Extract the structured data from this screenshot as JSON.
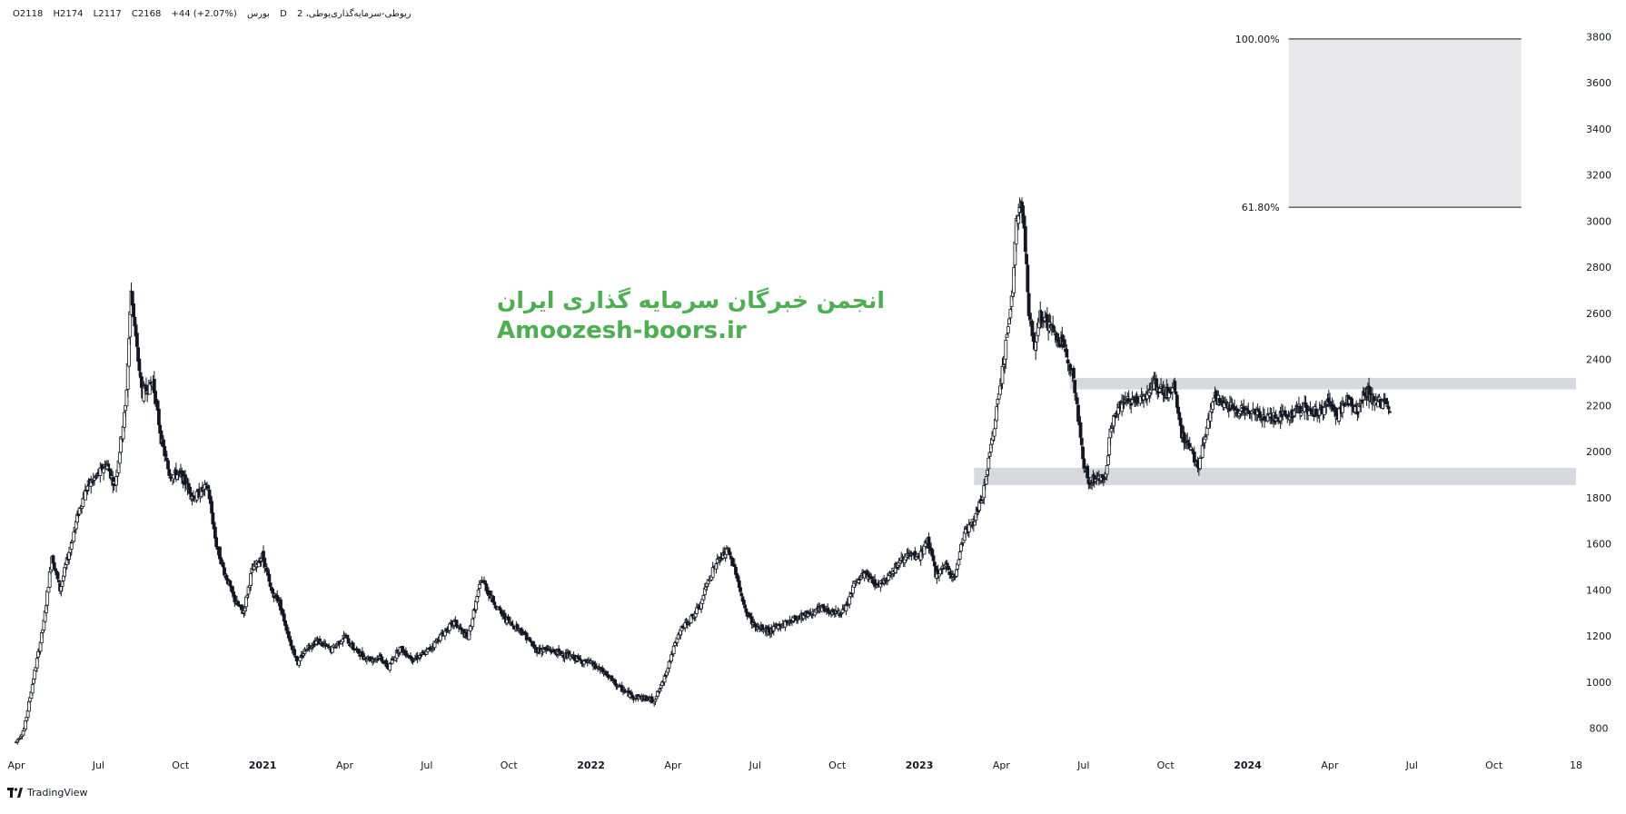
{
  "legend": {
    "symbol": "ریوطی-سرمایه‌گذاری‌یوطی، 2",
    "interval": "D",
    "exchange": "بورس",
    "open": "O2118",
    "high": "H2174",
    "low": "L2117",
    "close": "C2168",
    "change": "+44 (+2.07%)"
  },
  "watermark": {
    "persian": "انجمن خبرگان سرمایه گذاری ایران",
    "english": "Amoozesh-boors.ir",
    "color": "#4caf50"
  },
  "branding": {
    "label": "TradingView"
  },
  "chart_data": {
    "type": "candlestick",
    "title": "",
    "xlabel": "",
    "ylabel": "",
    "ylim": [
      720,
      3880
    ],
    "y_ticks": [
      800,
      1000,
      1200,
      1400,
      1600,
      1800,
      2000,
      2200,
      2400,
      2600,
      2800,
      3000,
      3200,
      3400,
      3600,
      3800
    ],
    "x_ticks": [
      {
        "t": 0.0,
        "label": "Apr",
        "bold": false
      },
      {
        "t": 3.0,
        "label": "Jul",
        "bold": false
      },
      {
        "t": 6.0,
        "label": "Oct",
        "bold": false
      },
      {
        "t": 9.0,
        "label": "2021",
        "bold": true
      },
      {
        "t": 12.0,
        "label": "Apr",
        "bold": false
      },
      {
        "t": 15.0,
        "label": "Jul",
        "bold": false
      },
      {
        "t": 18.0,
        "label": "Oct",
        "bold": false
      },
      {
        "t": 21.0,
        "label": "2022",
        "bold": true
      },
      {
        "t": 24.0,
        "label": "Apr",
        "bold": false
      },
      {
        "t": 27.0,
        "label": "Jul",
        "bold": false
      },
      {
        "t": 30.0,
        "label": "Oct",
        "bold": false
      },
      {
        "t": 33.0,
        "label": "2023",
        "bold": true
      },
      {
        "t": 36.0,
        "label": "Apr",
        "bold": false
      },
      {
        "t": 39.0,
        "label": "Jul",
        "bold": false
      },
      {
        "t": 42.0,
        "label": "Oct",
        "bold": false
      },
      {
        "t": 45.0,
        "label": "2024",
        "bold": true
      },
      {
        "t": 48.0,
        "label": "Apr",
        "bold": false
      },
      {
        "t": 51.0,
        "label": "Jul",
        "bold": false
      },
      {
        "t": 54.0,
        "label": "Oct",
        "bold": false
      },
      {
        "t": 57.0,
        "label": "18",
        "bold": false
      }
    ],
    "price_path": [
      [
        0.0,
        740
      ],
      [
        0.3,
        800
      ],
      [
        0.6,
        1000
      ],
      [
        1.0,
        1250
      ],
      [
        1.3,
        1550
      ],
      [
        1.6,
        1400
      ],
      [
        2.0,
        1600
      ],
      [
        2.3,
        1750
      ],
      [
        2.6,
        1850
      ],
      [
        3.0,
        1900
      ],
      [
        3.3,
        1950
      ],
      [
        3.6,
        1850
      ],
      [
        4.0,
        2200
      ],
      [
        4.2,
        2700
      ],
      [
        4.4,
        2450
      ],
      [
        4.6,
        2250
      ],
      [
        5.0,
        2300
      ],
      [
        5.3,
        2050
      ],
      [
        5.6,
        1900
      ],
      [
        6.0,
        1900
      ],
      [
        6.5,
        1800
      ],
      [
        7.0,
        1850
      ],
      [
        7.3,
        1600
      ],
      [
        7.6,
        1480
      ],
      [
        8.0,
        1350
      ],
      [
        8.3,
        1300
      ],
      [
        8.6,
        1480
      ],
      [
        9.0,
        1550
      ],
      [
        9.3,
        1400
      ],
      [
        9.6,
        1350
      ],
      [
        10.0,
        1180
      ],
      [
        10.3,
        1080
      ],
      [
        10.6,
        1150
      ],
      [
        11.0,
        1180
      ],
      [
        11.5,
        1140
      ],
      [
        12.0,
        1200
      ],
      [
        12.3,
        1150
      ],
      [
        12.7,
        1110
      ],
      [
        13.0,
        1100
      ],
      [
        13.3,
        1110
      ],
      [
        13.6,
        1060
      ],
      [
        14.0,
        1150
      ],
      [
        14.5,
        1100
      ],
      [
        15.0,
        1130
      ],
      [
        15.5,
        1200
      ],
      [
        16.0,
        1260
      ],
      [
        16.5,
        1190
      ],
      [
        17.0,
        1450
      ],
      [
        17.3,
        1380
      ],
      [
        17.7,
        1300
      ],
      [
        18.0,
        1260
      ],
      [
        18.5,
        1220
      ],
      [
        19.0,
        1140
      ],
      [
        19.5,
        1140
      ],
      [
        20.0,
        1120
      ],
      [
        20.5,
        1100
      ],
      [
        21.0,
        1080
      ],
      [
        21.5,
        1040
      ],
      [
        22.0,
        980
      ],
      [
        22.5,
        940
      ],
      [
        23.0,
        930
      ],
      [
        23.3,
        920
      ],
      [
        23.6,
        990
      ],
      [
        24.0,
        1140
      ],
      [
        24.3,
        1230
      ],
      [
        24.6,
        1270
      ],
      [
        25.0,
        1330
      ],
      [
        25.3,
        1450
      ],
      [
        25.6,
        1520
      ],
      [
        26.0,
        1570
      ],
      [
        26.3,
        1480
      ],
      [
        26.6,
        1320
      ],
      [
        27.0,
        1240
      ],
      [
        27.5,
        1220
      ],
      [
        28.0,
        1250
      ],
      [
        28.5,
        1280
      ],
      [
        29.0,
        1300
      ],
      [
        29.5,
        1320
      ],
      [
        30.0,
        1300
      ],
      [
        30.3,
        1310
      ],
      [
        30.6,
        1420
      ],
      [
        31.0,
        1470
      ],
      [
        31.5,
        1420
      ],
      [
        32.0,
        1480
      ],
      [
        32.5,
        1550
      ],
      [
        33.0,
        1540
      ],
      [
        33.3,
        1620
      ],
      [
        33.6,
        1470
      ],
      [
        34.0,
        1500
      ],
      [
        34.3,
        1450
      ],
      [
        34.6,
        1640
      ],
      [
        35.0,
        1700
      ],
      [
        35.3,
        1800
      ],
      [
        35.6,
        2000
      ],
      [
        35.9,
        2250
      ],
      [
        36.2,
        2500
      ],
      [
        36.4,
        2680
      ],
      [
        36.55,
        3000
      ],
      [
        36.7,
        3100
      ],
      [
        36.85,
        2950
      ],
      [
        37.0,
        2600
      ],
      [
        37.2,
        2450
      ],
      [
        37.4,
        2600
      ],
      [
        37.6,
        2570
      ],
      [
        38.0,
        2500
      ],
      [
        38.3,
        2450
      ],
      [
        38.6,
        2350
      ],
      [
        38.8,
        2150
      ],
      [
        39.0,
        1950
      ],
      [
        39.2,
        1870
      ],
      [
        39.5,
        1880
      ],
      [
        39.8,
        1900
      ],
      [
        40.0,
        2100
      ],
      [
        40.3,
        2200
      ],
      [
        40.6,
        2220
      ],
      [
        41.0,
        2230
      ],
      [
        41.3,
        2250
      ],
      [
        41.6,
        2290
      ],
      [
        42.0,
        2250
      ],
      [
        42.3,
        2280
      ],
      [
        42.6,
        2070
      ],
      [
        42.9,
        2020
      ],
      [
        43.2,
        1930
      ],
      [
        43.5,
        2100
      ],
      [
        43.8,
        2240
      ],
      [
        44.0,
        2210
      ],
      [
        44.5,
        2190
      ],
      [
        45.0,
        2170
      ],
      [
        45.5,
        2160
      ],
      [
        46.0,
        2150
      ],
      [
        46.5,
        2160
      ],
      [
        47.0,
        2190
      ],
      [
        47.5,
        2170
      ],
      [
        48.0,
        2210
      ],
      [
        48.3,
        2160
      ],
      [
        48.6,
        2230
      ],
      [
        49.0,
        2180
      ],
      [
        49.3,
        2260
      ],
      [
        49.6,
        2230
      ],
      [
        50.0,
        2200
      ],
      [
        50.2,
        2168
      ]
    ],
    "zones": [
      {
        "t0": 38.5,
        "t1": 57.0,
        "y0": 2270,
        "y1": 2320
      },
      {
        "t0": 35.0,
        "t1": 57.0,
        "y0": 1855,
        "y1": 1930
      }
    ],
    "fib_box": {
      "t0": 46.5,
      "t1": 55.0,
      "level_100": {
        "label": "100.00%",
        "price": 3790
      },
      "level_618": {
        "label": "61.80%",
        "price": 3060
      }
    }
  },
  "colors": {
    "candle": "#131722",
    "candle_up_fill": "#ffffff",
    "zone": "#d8d9de",
    "fib_fill": "#e8e8ea",
    "axis_text": "#131722",
    "border": "#e0e3eb"
  }
}
